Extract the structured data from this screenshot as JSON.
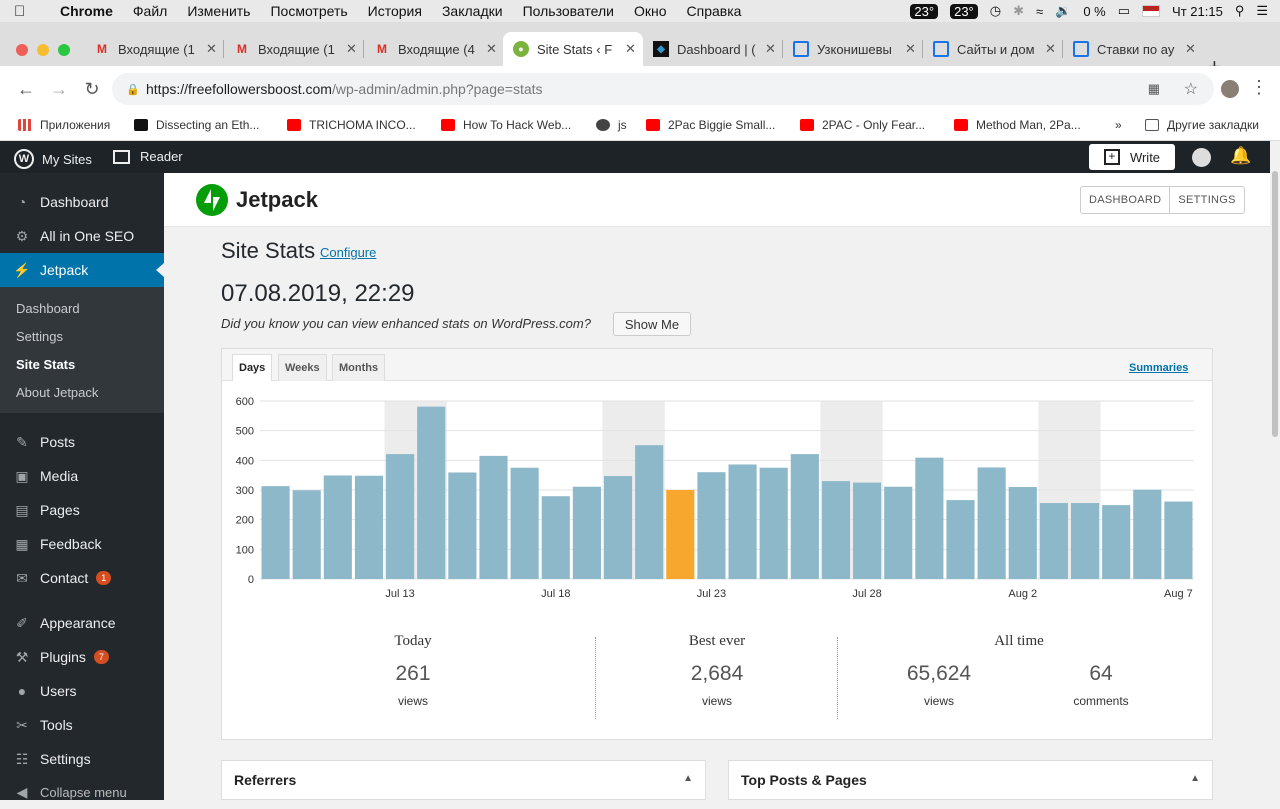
{
  "menubar": {
    "app_name": "Chrome",
    "items": [
      "Файл",
      "Изменить",
      "Посмотреть",
      "История",
      "Закладки",
      "Пользователи",
      "Окно",
      "Справка"
    ],
    "temp1": "23°",
    "temp2": "23°",
    "battery": "0 %",
    "clock": "Чт 21:15"
  },
  "tabs": [
    {
      "title": "Входящие (1",
      "icon": "gmail-icon"
    },
    {
      "title": "Входящие (1",
      "icon": "gmail-icon"
    },
    {
      "title": "Входящие (4",
      "icon": "gmail-icon"
    },
    {
      "title": "Site Stats ‹ F",
      "icon": "jetpack-tab-icon",
      "active": true
    },
    {
      "title": "Dashboard | (",
      "icon": "dashboard-icon"
    },
    {
      "title": "Узконишевы",
      "icon": "monitor-icon"
    },
    {
      "title": "Сайты и дом",
      "icon": "monitor-icon"
    },
    {
      "title": "Ставки по ау",
      "icon": "monitor-icon"
    }
  ],
  "address": {
    "host": "https://freefollowersboost.com",
    "path": "/wp-admin/admin.php?page=stats"
  },
  "bookmarks": [
    {
      "label": "Приложения",
      "color": "#e0453a"
    },
    {
      "label": "Dissecting an Eth...",
      "color": "#111111"
    },
    {
      "label": "TRICHOMA INCO...",
      "color": "#ff0000"
    },
    {
      "label": "How To Hack Web...",
      "color": "#ff0000"
    },
    {
      "label": "js",
      "color": "#333333"
    },
    {
      "label": "2Pac Biggie Small...",
      "color": "#ff0000"
    },
    {
      "label": "2PAC - Only Fear...",
      "color": "#ff0000"
    },
    {
      "label": "Method Man, 2Pa...",
      "color": "#ff0000"
    }
  ],
  "bookmarks_more": "»",
  "bookmarks_other": "Другие закладки",
  "adminbar": {
    "my_sites": "My Sites",
    "reader": "Reader",
    "write": "Write"
  },
  "sidebar": {
    "items": [
      {
        "label": "Dashboard",
        "icon": "dashboard-icon"
      },
      {
        "label": "All in One SEO",
        "icon": "gear-icon"
      },
      {
        "label": "Jetpack",
        "icon": "jetpack-icon",
        "current": true
      },
      {
        "label": "Posts",
        "icon": "pin-icon"
      },
      {
        "label": "Media",
        "icon": "media-icon"
      },
      {
        "label": "Pages",
        "icon": "pages-icon"
      },
      {
        "label": "Feedback",
        "icon": "feedback-icon"
      },
      {
        "label": "Contact",
        "icon": "mail-icon",
        "badge": "1"
      },
      {
        "label": "Appearance",
        "icon": "brush-icon"
      },
      {
        "label": "Plugins",
        "icon": "plugin-icon",
        "badge": "7"
      },
      {
        "label": "Users",
        "icon": "users-icon"
      },
      {
        "label": "Tools",
        "icon": "wrench-icon"
      },
      {
        "label": "Settings",
        "icon": "settings-icon"
      },
      {
        "label": "Collapse menu",
        "icon": "collapse-icon"
      }
    ],
    "submenu": [
      "Dashboard",
      "Settings",
      "Site Stats",
      "About Jetpack"
    ]
  },
  "jetpack": {
    "title": "Jetpack",
    "btn_dashboard": "DASHBOARD",
    "btn_settings": "SETTINGS"
  },
  "stats": {
    "title": "Site Stats",
    "configure": "Configure",
    "date": "07.08.2019, 22:29",
    "hint": "Did you know you can view enhanced stats on WordPress.com?",
    "show_me": "Show Me",
    "tabs": [
      "Days",
      "Weeks",
      "Months"
    ],
    "summaries": "Summaries"
  },
  "chart_data": {
    "type": "bar",
    "categories": [
      "Jul 9",
      "Jul 10",
      "Jul 11",
      "Jul 12",
      "Jul 13",
      "Jul 14",
      "Jul 15",
      "Jul 16",
      "Jul 17",
      "Jul 18",
      "Jul 19",
      "Jul 20",
      "Jul 21",
      "Jul 22",
      "Jul 23",
      "Jul 24",
      "Jul 25",
      "Jul 26",
      "Jul 27",
      "Jul 28",
      "Jul 29",
      "Jul 30",
      "Jul 31",
      "Aug 1",
      "Aug 2",
      "Aug 3",
      "Aug 4",
      "Aug 5",
      "Aug 6",
      "Aug 7"
    ],
    "values": [
      313,
      299,
      349,
      348,
      421,
      581,
      359,
      415,
      375,
      279,
      311,
      347,
      451,
      300,
      360,
      386,
      375,
      421,
      330,
      325,
      311,
      409,
      266,
      376,
      310,
      256,
      256,
      249,
      301,
      261
    ],
    "highlight_index": 13,
    "xtick_labels": [
      {
        "index": 4,
        "label": "Jul 13"
      },
      {
        "index": 9,
        "label": "Jul 18"
      },
      {
        "index": 14,
        "label": "Jul 23"
      },
      {
        "index": 19,
        "label": "Jul 28"
      },
      {
        "index": 24,
        "label": "Aug 2"
      },
      {
        "index": 29,
        "label": "Aug 7"
      }
    ],
    "weekend_bands": [
      [
        4,
        5
      ],
      [
        11,
        12
      ],
      [
        18,
        19
      ],
      [
        25,
        26
      ]
    ],
    "yticks": [
      0,
      100,
      200,
      300,
      400,
      500,
      600
    ],
    "ylim": [
      0,
      600
    ],
    "bar_color": "#8cb8c9",
    "highlight_color": "#f8a72e",
    "grid": true
  },
  "summary": {
    "today_label": "Today",
    "today_value": "261",
    "today_unit": "views",
    "best_label": "Best ever",
    "best_value": "2,684",
    "best_unit": "views",
    "all_label": "All time",
    "all_views": "65,624",
    "all_views_unit": "views",
    "all_comments": "64",
    "all_comments_unit": "comments"
  },
  "panels": {
    "referrers": "Referrers",
    "top_posts": "Top Posts & Pages"
  }
}
